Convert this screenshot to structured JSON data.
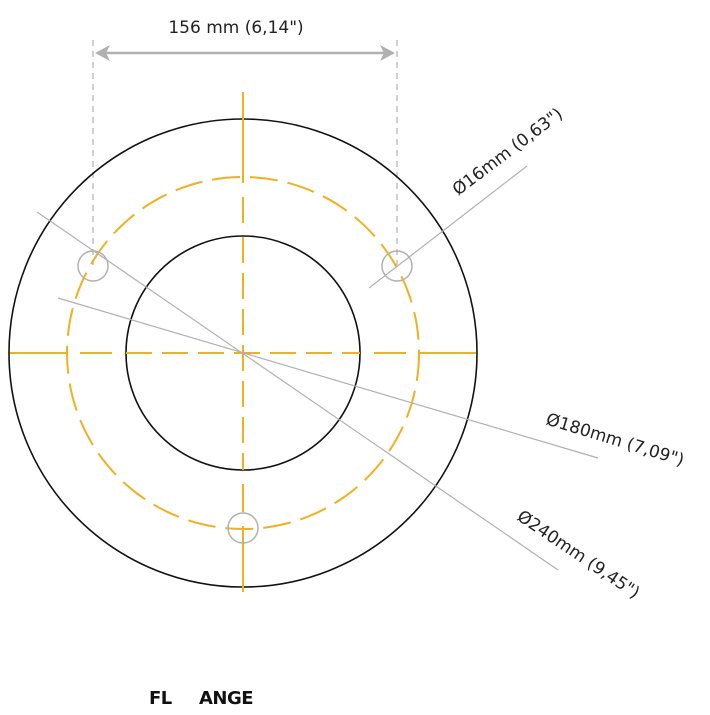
{
  "labels": {
    "top_width": "156 mm (6,14\")",
    "hole_diameter": "Ø16mm (0,63\")",
    "bolt_circle": "Ø180mm (7,09\")",
    "outer_diameter": "Ø240mm (9,45\")"
  },
  "footer": {
    "part1": "FL",
    "part2": "ANGE"
  },
  "colors": {
    "outline": "#111111",
    "centerline": "#f0b020",
    "dimension": "#b0b0b0"
  }
}
